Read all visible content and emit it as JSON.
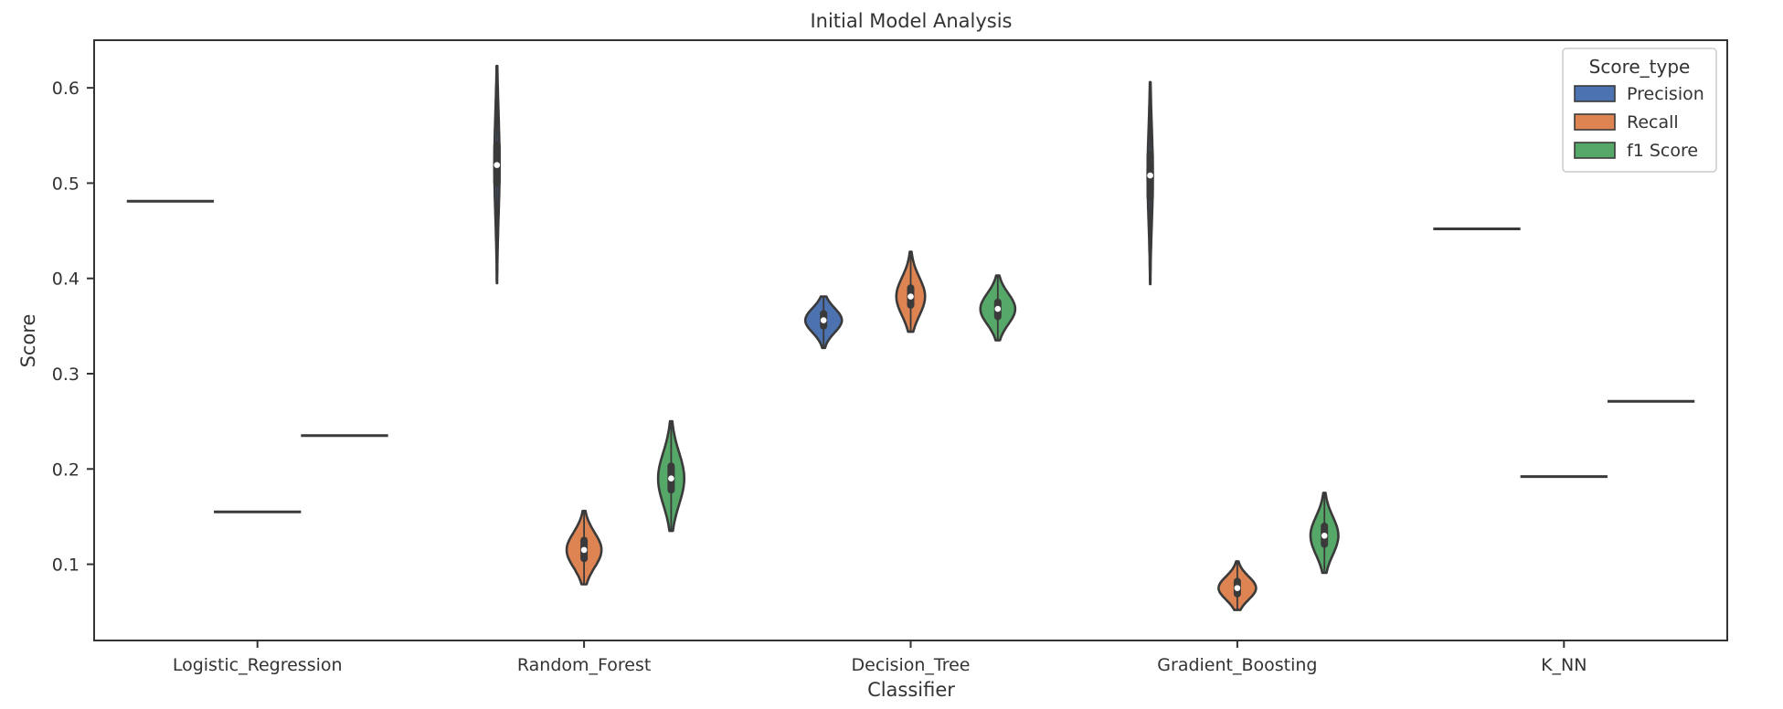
{
  "chart_data": {
    "type": "violin",
    "title": "Initial Model Analysis",
    "xlabel": "Classifier",
    "ylabel": "Score",
    "categories": [
      "Logistic_Regression",
      "Random_Forest",
      "Decision_Tree",
      "Gradient_Boosting",
      "K_NN"
    ],
    "ylim": [
      0.02,
      0.65
    ],
    "yticks": [
      0.1,
      0.2,
      0.3,
      0.4,
      0.5,
      0.6
    ],
    "ytick_labels": [
      "0.1",
      "0.2",
      "0.3",
      "0.4",
      "0.5",
      "0.6"
    ],
    "grid": false,
    "legend": {
      "title": "Score_type",
      "placement": "top-right",
      "entries": [
        "Precision",
        "Recall",
        "f1 Score"
      ]
    },
    "series": [
      {
        "name": "Precision",
        "color": "#4c72b0",
        "values": [
          {
            "min": 0.481,
            "max": 0.481,
            "median": 0.481,
            "q1": 0.481,
            "q3": 0.481,
            "maxwidth": 0.0
          },
          {
            "min": 0.395,
            "max": 0.623,
            "median": 0.519,
            "q1": 0.5,
            "q3": 0.54,
            "maxwidth": 0.06
          },
          {
            "min": 0.327,
            "max": 0.381,
            "median": 0.356,
            "q1": 0.35,
            "q3": 0.363,
            "maxwidth": 0.42
          },
          {
            "min": 0.394,
            "max": 0.606,
            "median": 0.508,
            "q1": 0.485,
            "q3": 0.53,
            "maxwidth": 0.06
          },
          {
            "min": 0.452,
            "max": 0.452,
            "median": 0.452,
            "q1": 0.452,
            "q3": 0.452,
            "maxwidth": 0.0
          }
        ]
      },
      {
        "name": "Recall",
        "color": "#dd8452",
        "values": [
          {
            "min": 0.155,
            "max": 0.155,
            "median": 0.155,
            "q1": 0.155,
            "q3": 0.155,
            "maxwidth": 0.0
          },
          {
            "min": 0.079,
            "max": 0.156,
            "median": 0.115,
            "q1": 0.106,
            "q3": 0.125,
            "maxwidth": 0.4
          },
          {
            "min": 0.344,
            "max": 0.428,
            "median": 0.381,
            "q1": 0.372,
            "q3": 0.39,
            "maxwidth": 0.33
          },
          {
            "min": 0.052,
            "max": 0.103,
            "median": 0.075,
            "q1": 0.069,
            "q3": 0.082,
            "maxwidth": 0.43
          },
          {
            "min": 0.192,
            "max": 0.192,
            "median": 0.192,
            "q1": 0.192,
            "q3": 0.192,
            "maxwidth": 0.0
          }
        ]
      },
      {
        "name": "f1 Score",
        "color": "#55a868",
        "values": [
          {
            "min": 0.235,
            "max": 0.235,
            "median": 0.235,
            "q1": 0.235,
            "q3": 0.235,
            "maxwidth": 0.0
          },
          {
            "min": 0.135,
            "max": 0.25,
            "median": 0.19,
            "q1": 0.178,
            "q3": 0.203,
            "maxwidth": 0.3
          },
          {
            "min": 0.335,
            "max": 0.403,
            "median": 0.368,
            "q1": 0.36,
            "q3": 0.375,
            "maxwidth": 0.4
          },
          {
            "min": 0.091,
            "max": 0.175,
            "median": 0.13,
            "q1": 0.121,
            "q3": 0.14,
            "maxwidth": 0.32
          },
          {
            "min": 0.271,
            "max": 0.271,
            "median": 0.271,
            "q1": 0.271,
            "q3": 0.271,
            "maxwidth": 0.0
          }
        ]
      }
    ]
  }
}
